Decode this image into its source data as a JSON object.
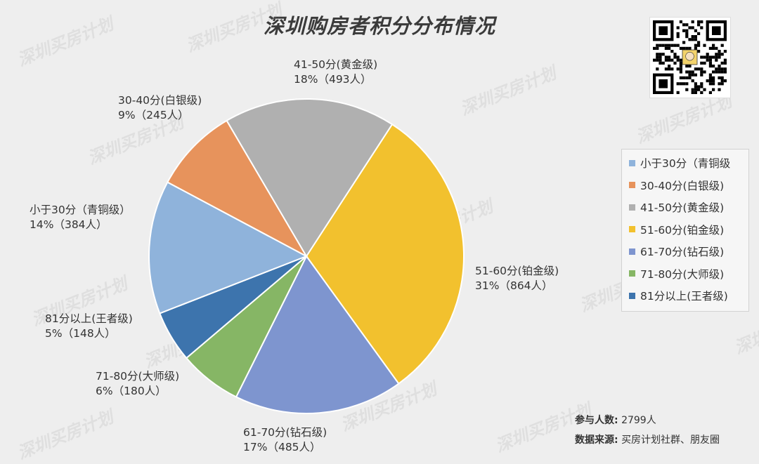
{
  "chart_data": {
    "type": "pie",
    "title": "深圳购房者积分分布情况",
    "slices": [
      {
        "name": "小于30分（青铜级）",
        "legend": "小于30分（青铜级",
        "label_line1": "小于30分（青铜级）",
        "label_line2": "14%（384人）",
        "percent": 14,
        "count": 384,
        "color": "#8fb3db"
      },
      {
        "name": "30-40分(白银级)",
        "legend": "30-40分(白银级)",
        "label_line1": "30-40分(白银级)",
        "label_line2": "9%（245人）",
        "percent": 9,
        "count": 245,
        "color": "#e7935c"
      },
      {
        "name": "41-50分(黄金级)",
        "legend": "41-50分(黄金级)",
        "label_line1": "41-50分(黄金级)",
        "label_line2": "18%（493人）",
        "percent": 18,
        "count": 493,
        "color": "#b0b0b0"
      },
      {
        "name": "51-60分(铂金级)",
        "legend": "51-60分(铂金级)",
        "label_line1": "51-60分(铂金级)",
        "label_line2": "31%（864人）",
        "percent": 31,
        "count": 864,
        "color": "#f2c12e"
      },
      {
        "name": "61-70分(钻石级)",
        "legend": "61-70分(钻石级)",
        "label_line1": "61-70分(钻石级)",
        "label_line2": "17%（485人）",
        "percent": 17,
        "count": 485,
        "color": "#7e95cf"
      },
      {
        "name": "71-80分(大师级)",
        "legend": "71-80分(大师级)",
        "label_line1": "71-80分(大师级)",
        "label_line2": "6%（180人）",
        "percent": 6,
        "count": 180,
        "color": "#86b665"
      },
      {
        "name": "81分以上(王者级)",
        "legend": "81分以上(王者级)",
        "label_line1": "81分以上(王者级)",
        "label_line2": "5%（148人）",
        "percent": 5,
        "count": 148,
        "color": "#3d74ad"
      }
    ],
    "legend_position": "right"
  },
  "footer": {
    "participants_label": "参与人数:",
    "participants_value": "2799人",
    "source_label": "数据来源:",
    "source_value": "买房计划社群、朋友圈"
  },
  "watermark": "深圳买房计划"
}
